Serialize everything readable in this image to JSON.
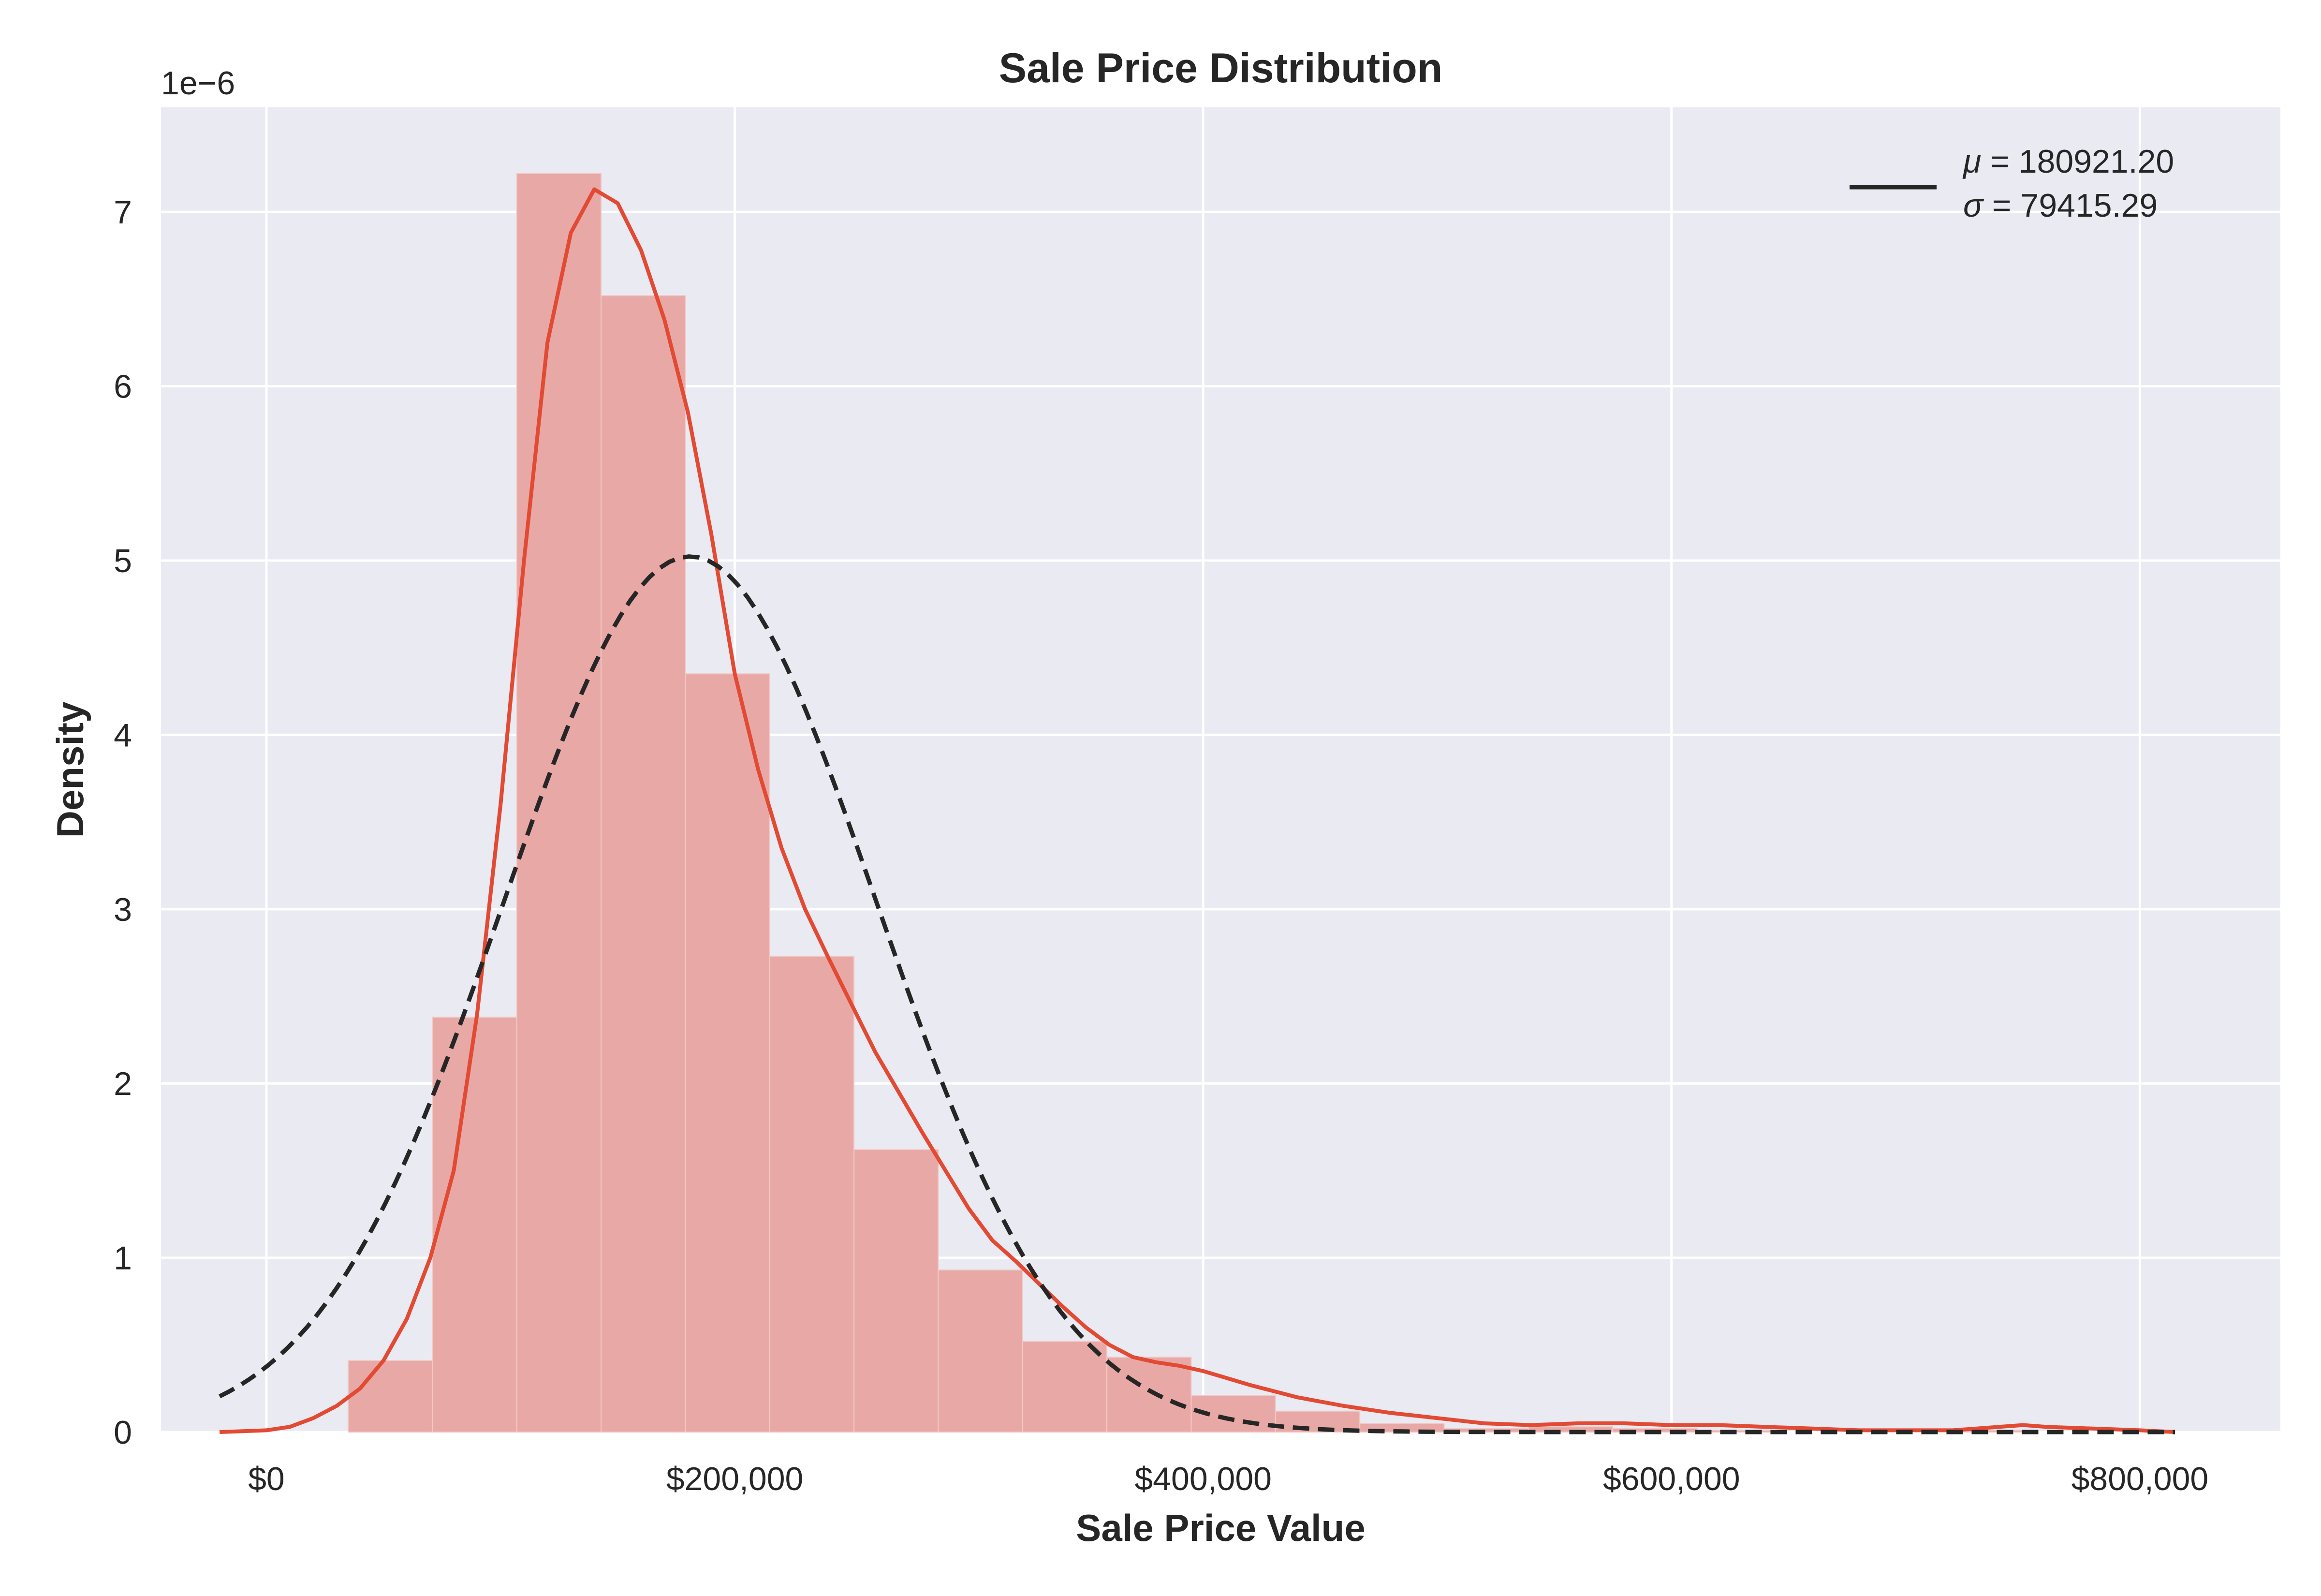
{
  "chart_data": {
    "type": "bar",
    "title": "Sale Price Distribution",
    "xlabel": "Sale Price Value",
    "ylabel": "Density",
    "y_offset_label": "1e−6",
    "xlim": [
      -45000,
      860000
    ],
    "ylim": [
      0,
      7.6
    ],
    "x_ticks": [
      0,
      200000,
      400000,
      600000,
      800000
    ],
    "x_tick_labels": [
      "$0",
      "$200,000",
      "$400,000",
      "$600,000",
      "$800,000"
    ],
    "y_ticks": [
      0,
      1,
      2,
      3,
      4,
      5,
      6,
      7
    ],
    "y_tick_labels": [
      "0",
      "1",
      "2",
      "3",
      "4",
      "5",
      "6",
      "7"
    ],
    "grid": true,
    "legend_placement": "top-right",
    "colors": {
      "background": "#eaeaf2",
      "grid": "#ffffff",
      "bars": "#e8a9a6",
      "kde": "#e24a33",
      "normal_fit": "#262626"
    },
    "histogram": {
      "bin_edges": [
        34900,
        70900,
        106900,
        142900,
        178900,
        214900,
        250900,
        286900,
        322900,
        358900,
        394900,
        430900,
        466900,
        502900,
        538900,
        574900,
        610900,
        646900,
        682900,
        718900,
        754900
      ],
      "values": [
        0.41,
        2.38,
        7.22,
        6.52,
        4.35,
        2.73,
        1.62,
        0.93,
        0.52,
        0.43,
        0.21,
        0.12,
        0.05,
        0.02,
        0.03,
        0.02,
        0.01,
        0.0,
        0.0,
        0.01
      ]
    },
    "series": [
      {
        "kind": "kde",
        "x": [
          -20000,
          0,
          10000,
          20000,
          30000,
          40000,
          50000,
          60000,
          70000,
          80000,
          90000,
          100000,
          110000,
          120000,
          130000,
          140000,
          150000,
          160000,
          170000,
          180000,
          190000,
          200000,
          210000,
          220000,
          230000,
          240000,
          250000,
          260000,
          270000,
          280000,
          290000,
          300000,
          310000,
          320000,
          330000,
          340000,
          350000,
          360000,
          370000,
          380000,
          390000,
          400000,
          420000,
          440000,
          460000,
          480000,
          500000,
          520000,
          540000,
          560000,
          580000,
          600000,
          620000,
          640000,
          660000,
          680000,
          700000,
          720000,
          740000,
          750000,
          760000,
          780000,
          800000,
          815000
        ],
        "y": [
          0.0,
          0.01,
          0.03,
          0.08,
          0.15,
          0.25,
          0.41,
          0.65,
          1.0,
          1.5,
          2.4,
          3.6,
          5.0,
          6.25,
          6.88,
          7.13,
          7.05,
          6.78,
          6.38,
          5.85,
          5.15,
          4.35,
          3.8,
          3.35,
          3.0,
          2.72,
          2.45,
          2.18,
          1.95,
          1.72,
          1.5,
          1.28,
          1.1,
          0.98,
          0.85,
          0.72,
          0.6,
          0.5,
          0.43,
          0.4,
          0.38,
          0.35,
          0.27,
          0.2,
          0.15,
          0.11,
          0.08,
          0.05,
          0.04,
          0.05,
          0.05,
          0.04,
          0.04,
          0.03,
          0.02,
          0.01,
          0.01,
          0.01,
          0.03,
          0.04,
          0.03,
          0.02,
          0.01,
          0.0
        ]
      },
      {
        "kind": "normal_fit",
        "name": "$\\mu=$ 180921.20\n$\\sigma=$ 79415.29",
        "mu": 180921.2,
        "sigma": 79415.29,
        "x_range": [
          -20000,
          815000
        ]
      }
    ],
    "legend": {
      "line1_sym": "μ",
      "line1_rest": " =  180921.20",
      "line2_sym": "σ",
      "line2_rest": " =  79415.29"
    }
  }
}
